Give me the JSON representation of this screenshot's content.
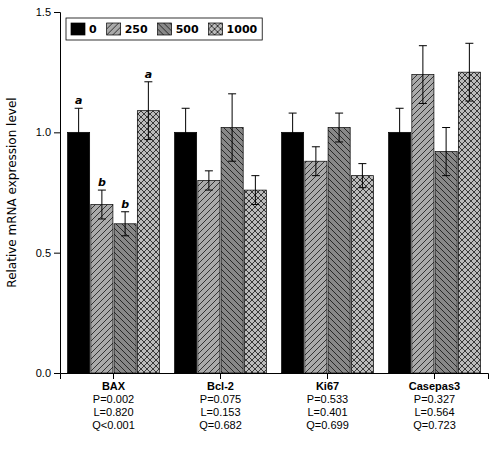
{
  "chart_data": {
    "type": "bar",
    "categories": [
      [
        "BAX",
        "P=0.002",
        "L=0.820",
        "Q<0.001"
      ],
      [
        "Bcl-2",
        "P=0.075",
        "L=0.153",
        "Q=0.682"
      ],
      [
        "Ki67",
        "P=0.533",
        "L=0.401",
        "Q=0.699"
      ],
      [
        "Casepas3",
        "P=0.327",
        "L=0.564",
        "Q=0.723"
      ]
    ],
    "series": [
      {
        "name": "0",
        "color": "#000000",
        "values": [
          1.0,
          1.0,
          1.0,
          1.0
        ],
        "errors": [
          0.1,
          0.1,
          0.08,
          0.1
        ],
        "annotations": [
          "a",
          null,
          null,
          null
        ]
      },
      {
        "name": "250",
        "color": "#aaaaaa",
        "values": [
          0.7,
          0.8,
          0.88,
          1.24
        ],
        "errors": [
          0.06,
          0.04,
          0.06,
          0.12
        ],
        "annotations": [
          "b",
          null,
          null,
          null
        ]
      },
      {
        "name": "500",
        "color": "#888888",
        "values": [
          0.62,
          1.02,
          1.02,
          0.92
        ],
        "errors": [
          0.05,
          0.14,
          0.06,
          0.1
        ],
        "annotations": [
          "b",
          null,
          null,
          null
        ]
      },
      {
        "name": "1000",
        "color": "#bbbbbb",
        "values": [
          1.09,
          0.76,
          0.82,
          1.25
        ],
        "errors": [
          0.12,
          0.06,
          0.05,
          0.12
        ],
        "annotations": [
          "a",
          null,
          null,
          null
        ]
      }
    ],
    "y_label": "Relative mRNA expression level",
    "ylim": [
      0.0,
      1.5
    ],
    "yticks": [
      {
        "value": 0.0,
        "label": "0.0"
      },
      {
        "value": 0.5,
        "label": "0.5"
      },
      {
        "value": 1.0,
        "label": "1.0"
      },
      {
        "value": 1.5,
        "label": "1.5"
      }
    ],
    "grid": false,
    "legend": "upper left"
  }
}
